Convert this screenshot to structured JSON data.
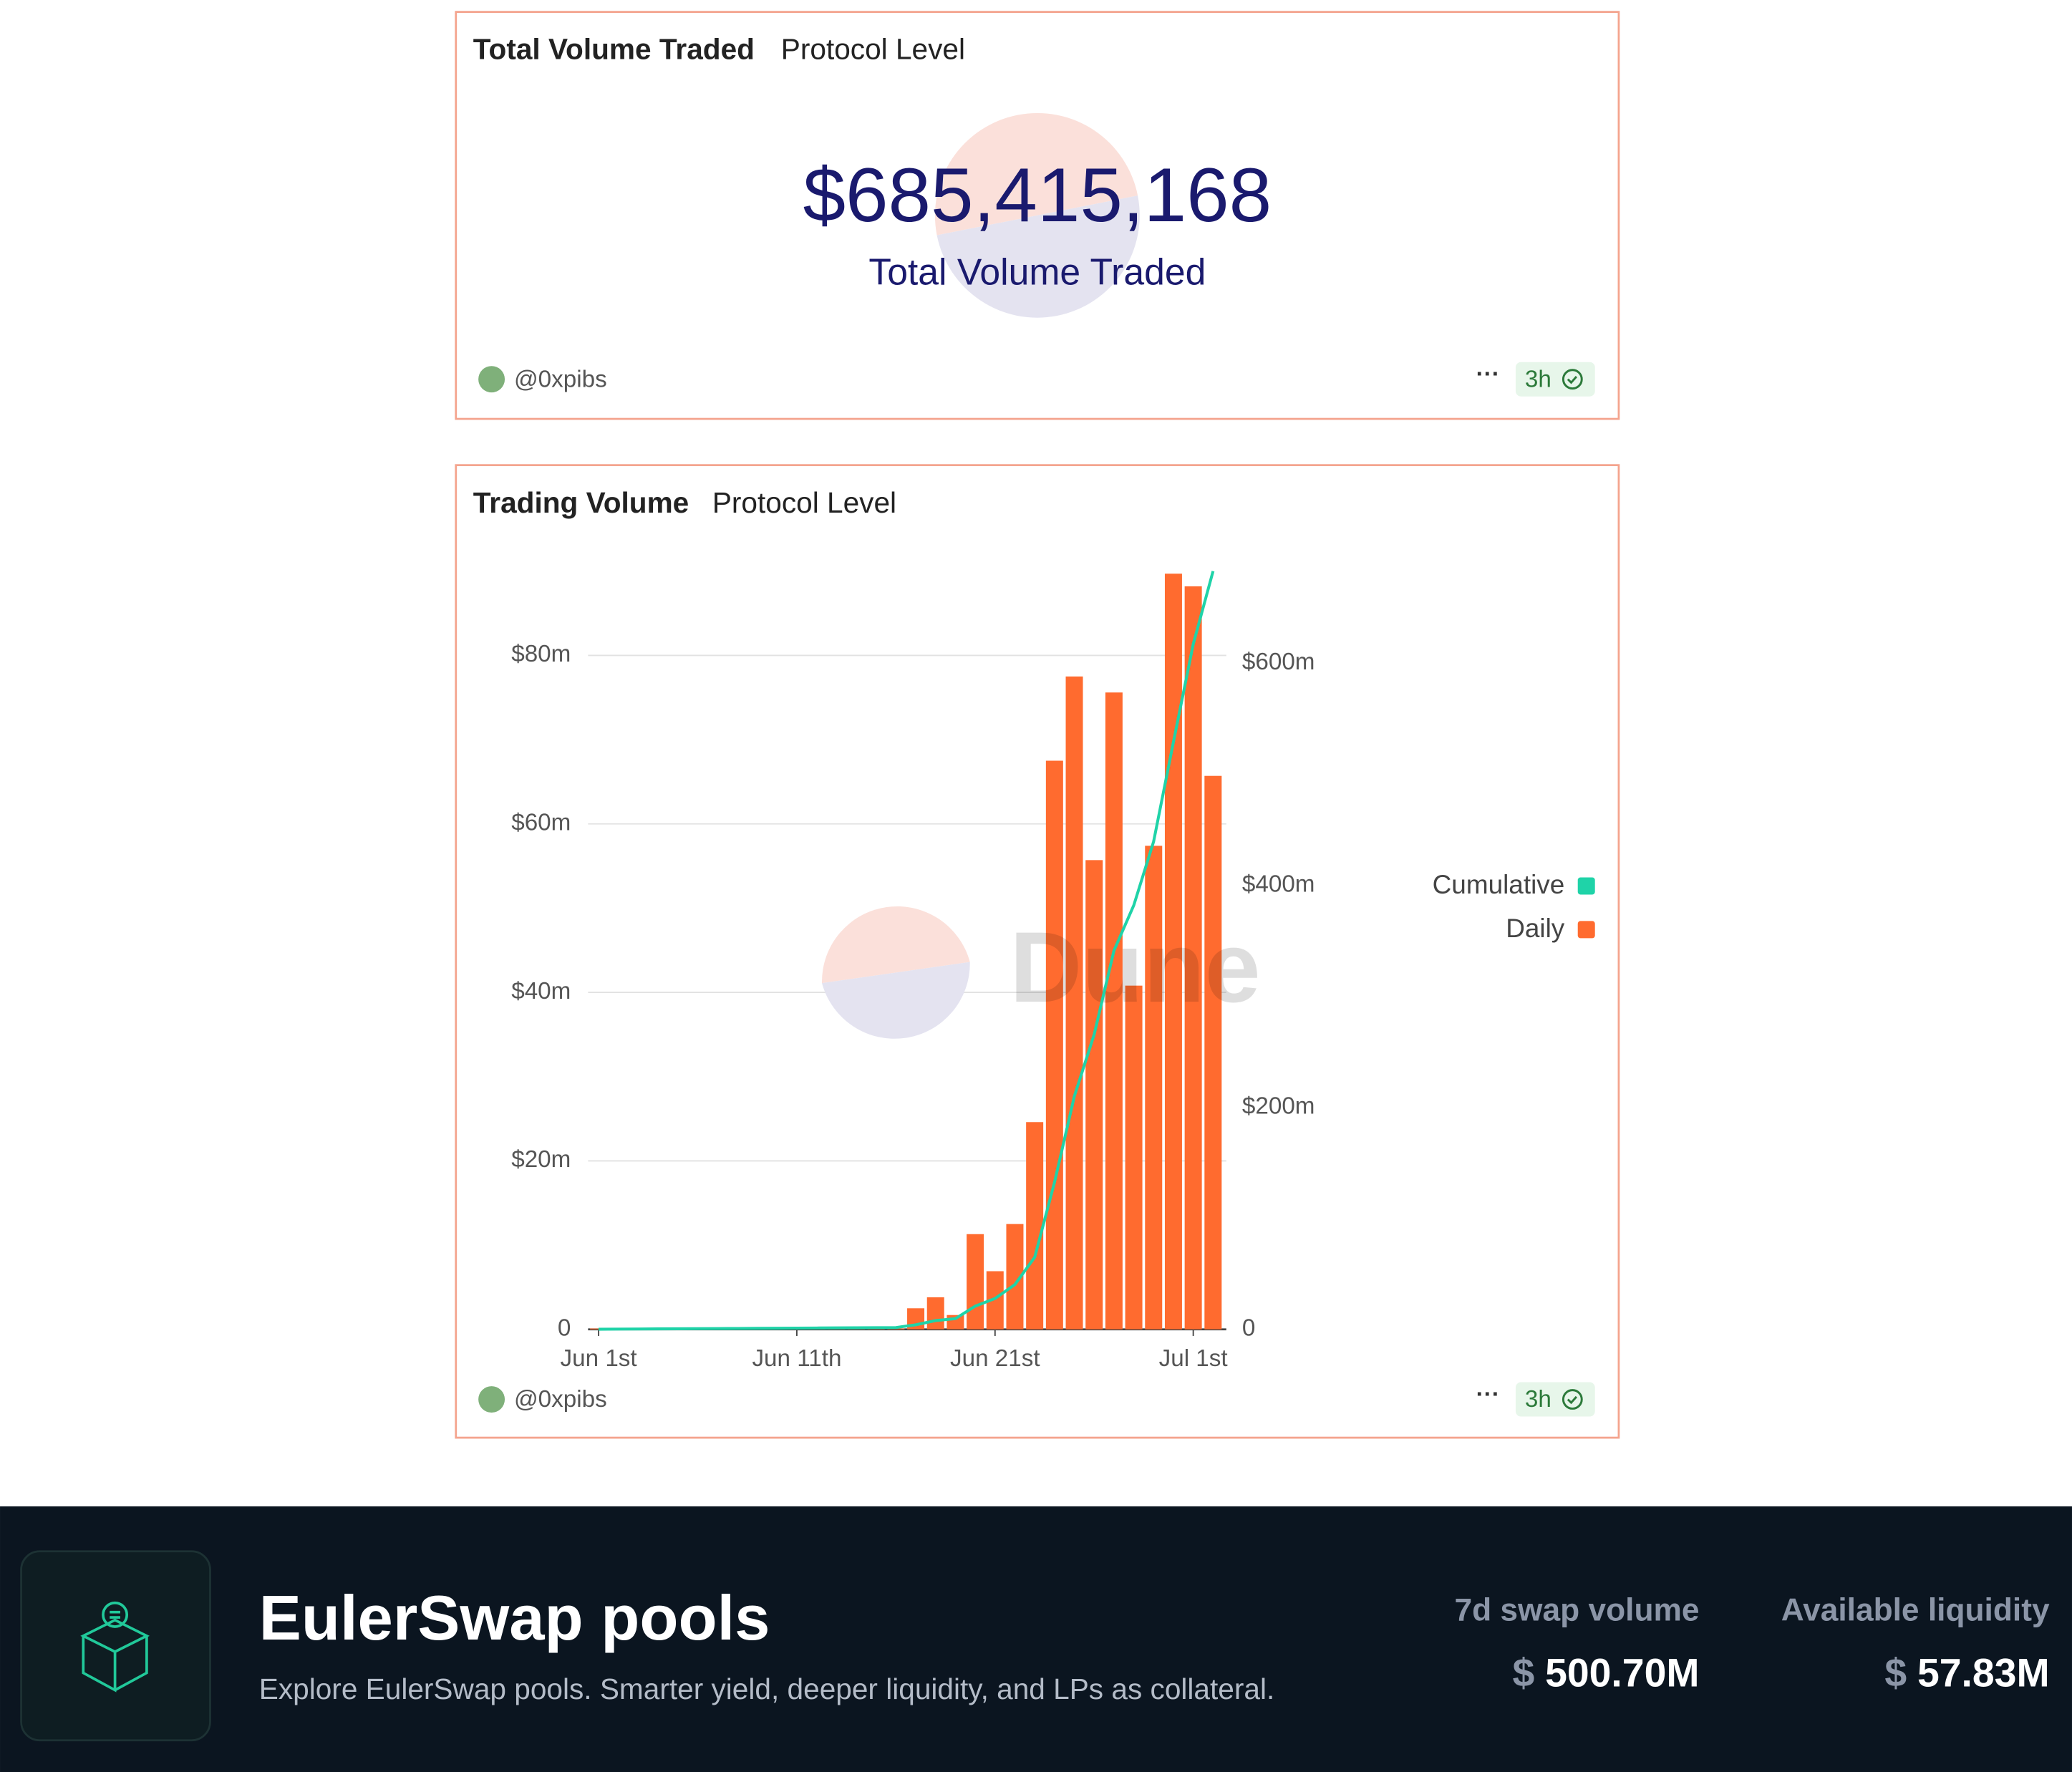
{
  "volume_card": {
    "title": "Total Volume Traded",
    "subtitle": "Protocol Level",
    "counter": "$685,415,168",
    "counter_label": "Total Volume Traded",
    "author": "@0xpibs",
    "age": "3h"
  },
  "volume_chart_card": {
    "title": "Trading Volume",
    "subtitle": "Protocol Level",
    "author": "@0xpibs",
    "age": "3h",
    "watermark": "Dune"
  },
  "chart_data": {
    "type": "bar",
    "x": [
      "Jun 1",
      "Jun 2",
      "Jun 3",
      "Jun 4",
      "Jun 5",
      "Jun 6",
      "Jun 7",
      "Jun 8",
      "Jun 9",
      "Jun 10",
      "Jun 11",
      "Jun 12",
      "Jun 13",
      "Jun 14",
      "Jun 15",
      "Jun 16",
      "Jun 17",
      "Jun 18",
      "Jun 19",
      "Jun 20",
      "Jun 21",
      "Jun 22",
      "Jun 23",
      "Jun 24",
      "Jun 25",
      "Jun 26",
      "Jun 27",
      "Jun 28",
      "Jun 29",
      "Jun 30",
      "Jul 1",
      "Jul 2"
    ],
    "xticks": [
      {
        "value": "Jun 1",
        "label": "Jun 1st"
      },
      {
        "value": "Jun 11",
        "label": "Jun 11th"
      },
      {
        "value": "Jun 21",
        "label": "Jun 21st"
      },
      {
        "value": "Jul 1",
        "label": "Jul 1st"
      }
    ],
    "series": [
      {
        "name": "Cumulative",
        "type": "line",
        "axis": "y2",
        "color": "#1fd3a8",
        "values": [
          0.1,
          0.2,
          0.3,
          0.4,
          0.5,
          0.6,
          0.7,
          0.8,
          0.9,
          1.0,
          1.1,
          1.2,
          1.3,
          1.4,
          1.5,
          1.6,
          4.1,
          7.9,
          9.6,
          20.9,
          27.8,
          40.3,
          64.9,
          132.4,
          209.9,
          265.6,
          341.2,
          382.0,
          439.4,
          529.1,
          617.3,
          683.0
        ]
      },
      {
        "name": "Daily",
        "type": "bar",
        "color": "#ff6b2f",
        "values": [
          0.1,
          0.1,
          0.1,
          0.1,
          0.1,
          0.1,
          0.1,
          0.1,
          0.1,
          0.1,
          0.1,
          0.1,
          0.1,
          0.1,
          0.1,
          0.1,
          2.5,
          3.8,
          1.7,
          11.3,
          6.9,
          12.5,
          24.6,
          67.5,
          77.5,
          55.7,
          75.6,
          40.8,
          57.4,
          89.7,
          88.2,
          65.7
        ]
      }
    ],
    "ylim": [
      0,
      90
    ],
    "yticks": [
      0,
      {
        "value": 20,
        "label": "$20m"
      },
      {
        "value": 40,
        "label": "$40m"
      },
      {
        "value": 60,
        "label": "$60m"
      },
      {
        "value": 80,
        "label": "$80m"
      }
    ],
    "y2lim": [
      0,
      683
    ],
    "y2ticks": [
      0,
      {
        "value": 200,
        "label": "$200m"
      },
      {
        "value": 400,
        "label": "$400m"
      },
      {
        "value": 600,
        "label": "$600m"
      }
    ],
    "grid": true,
    "legend": "right"
  },
  "banner": {
    "title": "EulerSwap pools",
    "description": "Explore EulerSwap pools. Smarter yield, deeper liquidity, and LPs as collateral.",
    "stats": [
      {
        "label": "7d swap volume",
        "currency": "$",
        "value": "500.70M"
      },
      {
        "label": "Available liquidity",
        "currency": "$",
        "value": "57.83M"
      }
    ]
  }
}
